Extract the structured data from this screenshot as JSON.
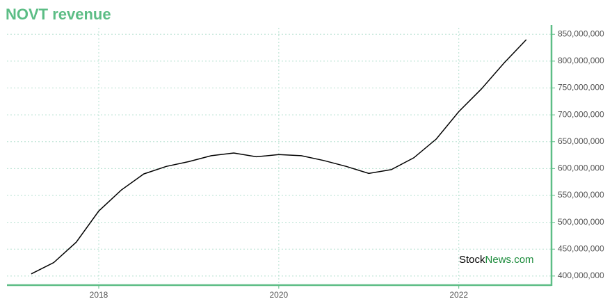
{
  "chart_data": {
    "type": "line",
    "title": "NOVT revenue",
    "x": [
      2017.25,
      2017.5,
      2017.75,
      2018.0,
      2018.25,
      2018.5,
      2018.75,
      2019.0,
      2019.25,
      2019.5,
      2019.75,
      2020.0,
      2020.25,
      2020.5,
      2020.75,
      2021.0,
      2021.25,
      2021.5,
      2021.75,
      2022.0,
      2022.25,
      2022.5,
      2022.75
    ],
    "series": [
      {
        "name": "NOVT revenue",
        "color": "#000000",
        "values": [
          404000000,
          425000000,
          463000000,
          521000000,
          560000000,
          590000000,
          604000000,
          613000000,
          624000000,
          629000000,
          622000000,
          626000000,
          624000000,
          615000000,
          604000000,
          591000000,
          598000000,
          620000000,
          655000000,
          706000000,
          748000000,
          796000000,
          840000000
        ]
      }
    ],
    "xlim": [
      2016.98,
      2023.03
    ],
    "xticks": [
      2018,
      2020,
      2022
    ],
    "ylim": [
      383000000,
      862000000
    ],
    "yticks": [
      {
        "value": 400000000,
        "label": "400,000,000"
      },
      {
        "value": 450000000,
        "label": "450,000,000"
      },
      {
        "value": 500000000,
        "label": "500,000,000"
      },
      {
        "value": 550000000,
        "label": "550,000,000"
      },
      {
        "value": 600000000,
        "label": "600,000,000"
      },
      {
        "value": 650000000,
        "label": "650,000,000"
      },
      {
        "value": 700000000,
        "label": "700,000,000"
      },
      {
        "value": 750000000,
        "label": "750,000,000"
      },
      {
        "value": 800000000,
        "label": "800,000,000"
      },
      {
        "value": 850000000,
        "label": "850,000,000"
      }
    ],
    "grid": true,
    "axis_color": "#5cbd85",
    "watermark": {
      "part1": "Stock",
      "part2": "News.com"
    }
  }
}
